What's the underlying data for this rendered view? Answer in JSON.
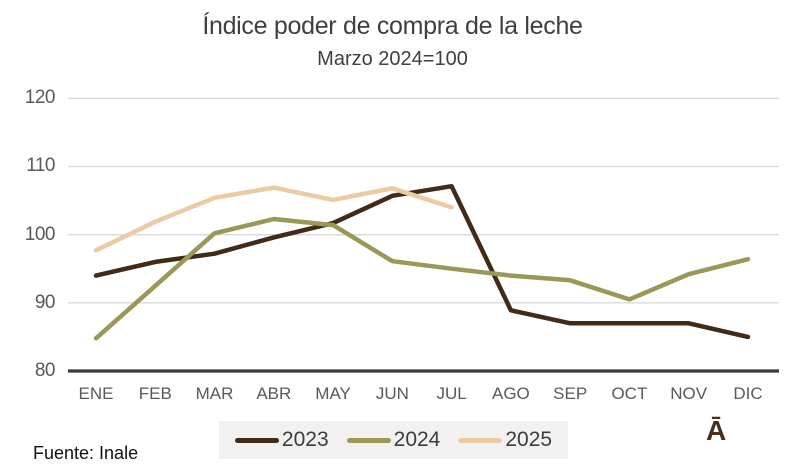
{
  "header": {
    "title": "Índice poder de compra de la leche",
    "subtitle": "Marzo 2024=100"
  },
  "footer": {
    "source": "Fuente: Inale",
    "watermark": "Ā"
  },
  "colors": {
    "title_text": "#3f3f3f",
    "axis_text": "#595959",
    "gridline": "#d9d9d9",
    "axis_line": "#3a3a3a",
    "legend_bg": "#f2f1ef",
    "source_text": "#111111",
    "watermark_text": "#47301c",
    "series_2023": "#412a18",
    "series_2024": "#9a9757",
    "series_2025": "#eccaa4"
  },
  "chart_data": {
    "type": "line",
    "title": "Índice poder de compra de la leche",
    "subtitle": "Marzo 2024=100",
    "categories": [
      "ENE",
      "FEB",
      "MAR",
      "ABR",
      "MAY",
      "JUN",
      "JUL",
      "AGO",
      "SEP",
      "OCT",
      "NOV",
      "DIC"
    ],
    "series": [
      {
        "name": "2023",
        "color": "#412a18",
        "values": [
          94.0,
          96.0,
          97.2,
          99.6,
          101.7,
          105.7,
          107.1,
          88.9,
          87.0,
          87.0,
          87.0,
          85.0
        ]
      },
      {
        "name": "2024",
        "color": "#9a9757",
        "values": [
          84.8,
          92.5,
          100.2,
          102.3,
          101.4,
          96.1,
          95.0,
          94.0,
          93.3,
          90.5,
          94.2,
          96.4
        ]
      },
      {
        "name": "2025",
        "color": "#eccaa4",
        "values": [
          97.7,
          101.9,
          105.4,
          106.9,
          105.1,
          106.8,
          104.0,
          null,
          null,
          null,
          null,
          null
        ]
      }
    ],
    "ylim": [
      80,
      120
    ],
    "yticks": [
      80,
      90,
      100,
      110,
      120
    ],
    "grid": true,
    "legend_position": "bottom",
    "source": "Fuente: Inale"
  }
}
